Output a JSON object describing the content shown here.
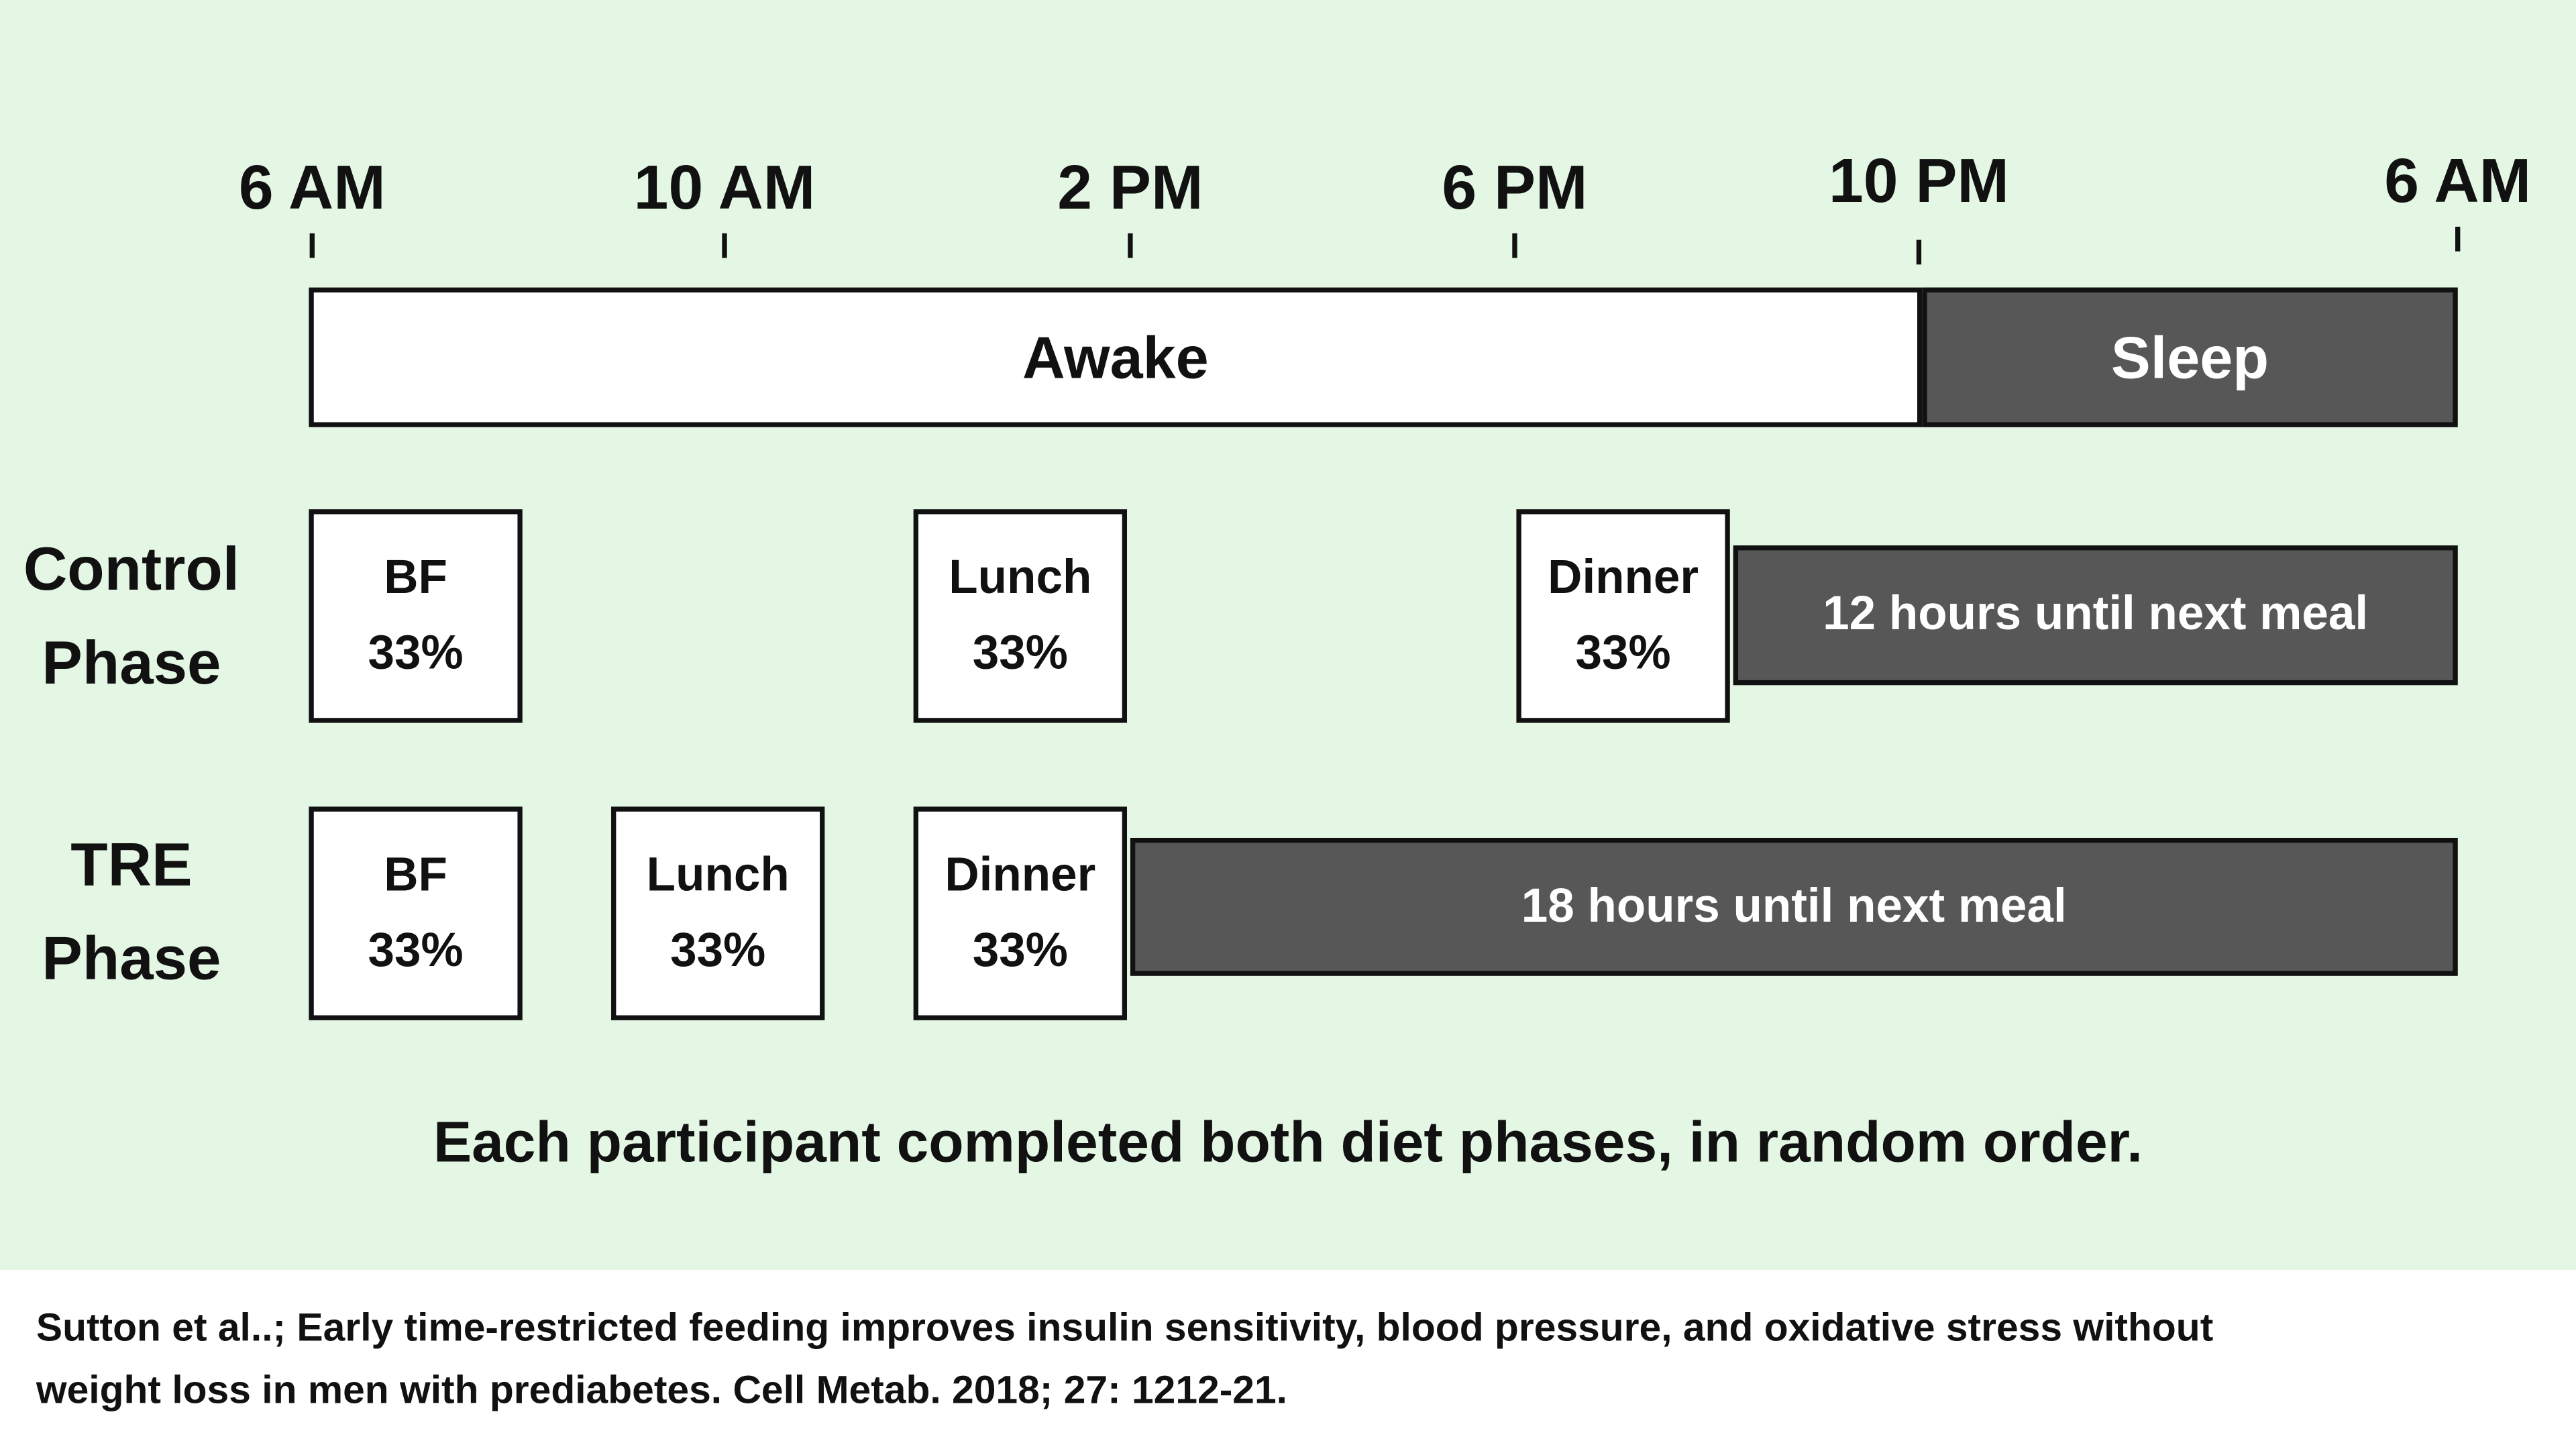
{
  "timeline": {
    "ticks": [
      "6 AM",
      "10 AM",
      "2 PM",
      "6 PM",
      "10 PM",
      "6 AM"
    ],
    "awake_label": "Awake",
    "sleep_label": "Sleep"
  },
  "control": {
    "label_line1": "Control",
    "label_line2": "Phase",
    "meals": [
      {
        "name": "BF",
        "share": "33%"
      },
      {
        "name": "Lunch",
        "share": "33%"
      },
      {
        "name": "Dinner",
        "share": "33%"
      }
    ],
    "fast_label": "12 hours until next meal"
  },
  "tre": {
    "label_line1": "TRE",
    "label_line2": "Phase",
    "meals": [
      {
        "name": "BF",
        "share": "33%"
      },
      {
        "name": "Lunch",
        "share": "33%"
      },
      {
        "name": "Dinner",
        "share": "33%"
      }
    ],
    "fast_label": "18 hours until next meal"
  },
  "caption": "Each participant completed both diet phases, in random order.",
  "citation_line1": "Sutton et al..; Early time-restricted feeding improves insulin sensitivity, blood pressure, and oxidative stress without",
  "citation_line2": "weight loss in men with prediabetes. Cell Metab. 2018; 27: 1212-21.",
  "colors": {
    "background": "#e4f6e4",
    "dark_bar": "#575757",
    "box": "#ffffff"
  }
}
